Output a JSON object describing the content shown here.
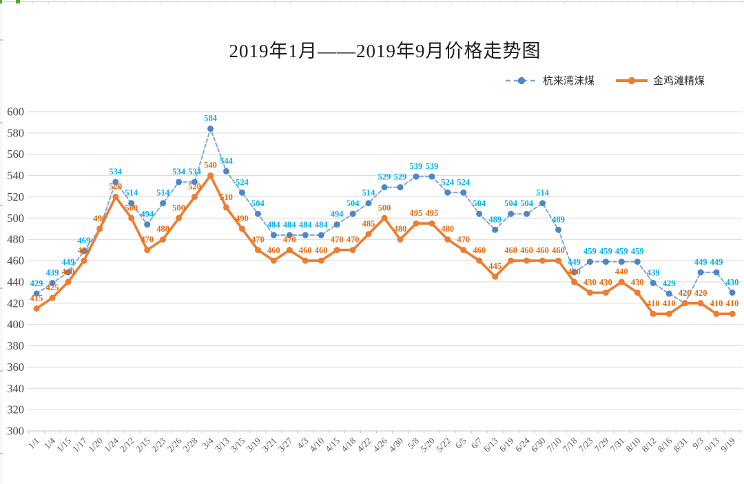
{
  "chart": {
    "title": "2019年1月——2019年9月价格走势图"
  },
  "legend": {
    "position": "top-right",
    "items": [
      {
        "label": "杭来湾沫煤"
      },
      {
        "label": "金鸡滩精煤"
      }
    ]
  },
  "chart_data": {
    "type": "line",
    "title": "2019年1月——2019年9月价格走势图",
    "xlabel": "",
    "ylabel": "",
    "ylim": [
      300,
      600
    ],
    "ytick_step": 20,
    "grid": true,
    "legend_position": "top-right",
    "data_labels": true,
    "background_color": "#ffffff",
    "gridline_color": "#d9d9d9",
    "axis_text_color": "#595959",
    "categories": [
      "1/1",
      "1/4",
      "1/15",
      "1/17",
      "1/20",
      "1/24",
      "2/12",
      "2/15",
      "2/23",
      "2/26",
      "2/28",
      "3/4",
      "3/13",
      "3/15",
      "3/19",
      "3/21",
      "3/27",
      "4/3",
      "4/10",
      "4/15",
      "4/18",
      "4/22",
      "4/26",
      "4/30",
      "5/8",
      "5/20",
      "5/22",
      "6/5",
      "6/7",
      "6/13",
      "6/19",
      "6/24",
      "6/30",
      "7/10",
      "7/18",
      "7/23",
      "7/29",
      "7/31",
      "8/10",
      "8/12",
      "8/16",
      "8/31",
      "9/3",
      "9/13",
      "9/19"
    ],
    "series": [
      {
        "name": "杭来湾沫煤",
        "line_style": "dashed",
        "line_color": "#7fa8d9",
        "marker_color": "#4e86c8",
        "label_color": "#00b0f0",
        "line_width": 2,
        "values": [
          429,
          439,
          449,
          469,
          490,
          534,
          514,
          494,
          514,
          534,
          534,
          584,
          544,
          524,
          504,
          484,
          484,
          484,
          484,
          494,
          504,
          514,
          529,
          529,
          539,
          539,
          524,
          524,
          504,
          489,
          504,
          504,
          514,
          489,
          449,
          459,
          459,
          459,
          459,
          439,
          429,
          420,
          449,
          449,
          430
        ]
      },
      {
        "name": "金鸡滩精煤",
        "line_style": "solid",
        "line_color": "#ed7d31",
        "marker_color": "#ed7d31",
        "label_color": "#e56a0e",
        "line_width": 3.6,
        "values": [
          415,
          425,
          440,
          460,
          490,
          520,
          500,
          470,
          480,
          500,
          520,
          540,
          510,
          490,
          470,
          460,
          470,
          460,
          460,
          470,
          470,
          485,
          500,
          480,
          495,
          495,
          480,
          470,
          460,
          445,
          460,
          460,
          460,
          460,
          440,
          430,
          430,
          440,
          430,
          410,
          410,
          420,
          420,
          410,
          410
        ]
      }
    ]
  }
}
